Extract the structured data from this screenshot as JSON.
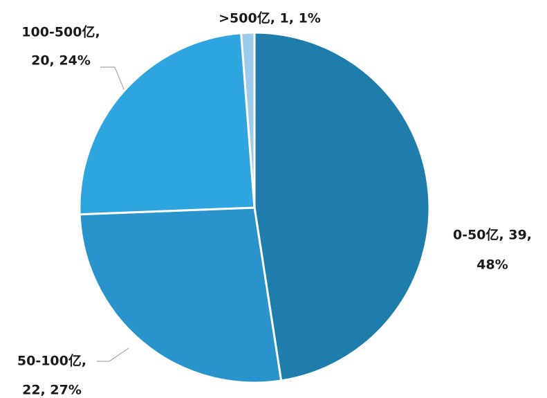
{
  "chart_data": {
    "type": "pie",
    "values": [
      39,
      22,
      20,
      1
    ],
    "value_labels": [
      [
        "0-50亿, 39,",
        "48%"
      ],
      [
        "50-100亿,",
        "22, 27%"
      ],
      [
        "100-500亿,",
        "20, 24%"
      ],
      [
        ">500亿, 1, 1%"
      ]
    ],
    "colors": [
      "#1f7dab",
      "#2993cb",
      "#2ea5df",
      "#9ccbeb"
    ]
  }
}
